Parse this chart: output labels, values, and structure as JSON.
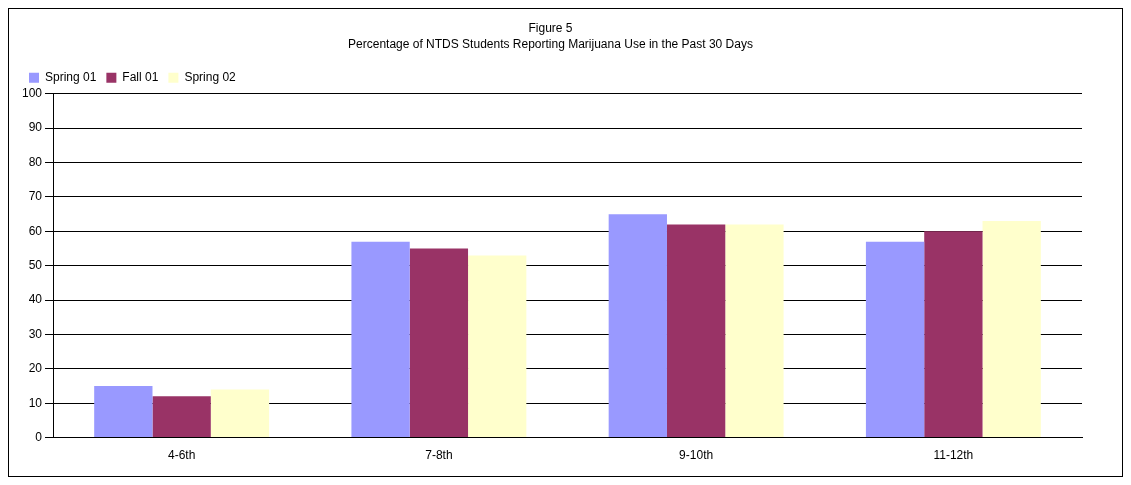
{
  "chart_data": {
    "type": "bar",
    "title": "Figure 5",
    "subtitle": "Percentage of NTDS Students Reporting Marijuana Use in the Past 30 Days",
    "categories": [
      "4-6th",
      "7-8th",
      "9-10th",
      "11-12th"
    ],
    "series": [
      {
        "name": "Spring 01",
        "color": "#9999ff",
        "values": [
          15,
          57,
          65,
          57
        ]
      },
      {
        "name": "Fall 01",
        "color": "#993366",
        "values": [
          12,
          55,
          62,
          60
        ]
      },
      {
        "name": "Spring 02",
        "color": "#ffffcc",
        "values": [
          14,
          53,
          62,
          63
        ]
      }
    ],
    "ylim": [
      0,
      100
    ],
    "yticks": [
      0,
      10,
      20,
      30,
      40,
      50,
      60,
      70,
      80,
      90,
      100
    ],
    "grid": "y",
    "legend": "top left"
  }
}
